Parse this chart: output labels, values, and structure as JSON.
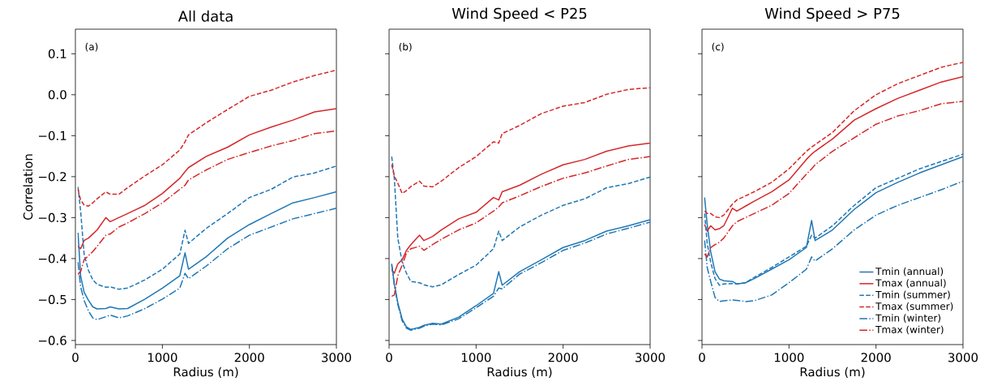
{
  "chart_data": [
    {
      "type": "line",
      "title": "All data",
      "xlabel": "Radius (m)",
      "ylabel": "Correlation",
      "annotations": [
        "(a)"
      ],
      "x": [
        30,
        60,
        100,
        150,
        200,
        250,
        350,
        400,
        500,
        600,
        800,
        1000,
        1200,
        1260,
        1300,
        1500,
        1750,
        2000,
        2250,
        2500,
        2750,
        3000
      ],
      "xlim": [
        0,
        3000
      ],
      "ylim": [
        -0.61,
        0.16
      ],
      "xticks": [
        0,
        1000,
        2000,
        3000
      ],
      "yticks": [
        {
          "value": -0.6,
          "label": "−0.6"
        },
        {
          "value": -0.5,
          "label": "−0.5"
        },
        {
          "value": -0.4,
          "label": "−0.4"
        },
        {
          "value": -0.3,
          "label": "−0.3"
        },
        {
          "value": -0.2,
          "label": "−0.2"
        },
        {
          "value": -0.1,
          "label": "−0.1"
        },
        {
          "value": 0,
          "label": "0.0"
        },
        0.1
      ],
      "series": [
        {
          "color": "#1f77b4",
          "line_style": "solid",
          "values": [
            -0.337,
            -0.442,
            -0.482,
            -0.502,
            -0.518,
            -0.523,
            -0.522,
            -0.518,
            -0.523,
            -0.522,
            -0.499,
            -0.472,
            -0.442,
            -0.386,
            -0.426,
            -0.396,
            -0.35,
            -0.317,
            -0.29,
            -0.264,
            -0.251,
            -0.237
          ]
        },
        {
          "color": "#d62728",
          "line_style": "solid",
          "values": [
            -0.37,
            -0.376,
            -0.356,
            -0.35,
            -0.34,
            -0.33,
            -0.3,
            -0.31,
            -0.3,
            -0.29,
            -0.27,
            -0.241,
            -0.204,
            -0.188,
            -0.178,
            -0.151,
            -0.128,
            -0.098,
            -0.079,
            -0.062,
            -0.042,
            -0.034
          ]
        },
        {
          "color": "#1f77b4",
          "line_style": "dashed",
          "values": [
            -0.225,
            -0.284,
            -0.389,
            -0.429,
            -0.452,
            -0.463,
            -0.47,
            -0.469,
            -0.475,
            -0.472,
            -0.452,
            -0.426,
            -0.389,
            -0.331,
            -0.363,
            -0.327,
            -0.29,
            -0.251,
            -0.231,
            -0.201,
            -0.191,
            -0.174
          ]
        },
        {
          "color": "#d62728",
          "line_style": "dashed",
          "values": [
            -0.231,
            -0.257,
            -0.269,
            -0.272,
            -0.264,
            -0.254,
            -0.237,
            -0.243,
            -0.243,
            -0.227,
            -0.198,
            -0.171,
            -0.135,
            -0.115,
            -0.098,
            -0.069,
            -0.036,
            -0.004,
            0.011,
            0.031,
            0.047,
            0.06
          ]
        },
        {
          "color": "#1f77b4",
          "line_style": "dashdot",
          "values": [
            -0.409,
            -0.469,
            -0.502,
            -0.528,
            -0.545,
            -0.549,
            -0.542,
            -0.538,
            -0.545,
            -0.54,
            -0.522,
            -0.499,
            -0.472,
            -0.436,
            -0.449,
            -0.419,
            -0.376,
            -0.343,
            -0.323,
            -0.303,
            -0.29,
            -0.277
          ]
        },
        {
          "color": "#d62728",
          "line_style": "dashdot",
          "values": [
            -0.439,
            -0.432,
            -0.403,
            -0.393,
            -0.383,
            -0.37,
            -0.343,
            -0.34,
            -0.323,
            -0.313,
            -0.29,
            -0.264,
            -0.231,
            -0.221,
            -0.208,
            -0.184,
            -0.158,
            -0.141,
            -0.125,
            -0.112,
            -0.095,
            -0.088
          ]
        }
      ]
    },
    {
      "type": "line",
      "title": "Wind Speed < P25",
      "xlabel": "Radius (m)",
      "annotations": [
        "(b)"
      ],
      "tick_labels": "x",
      "x": [
        30,
        60,
        100,
        150,
        200,
        250,
        350,
        400,
        500,
        600,
        800,
        1000,
        1200,
        1260,
        1300,
        1500,
        1750,
        2000,
        2250,
        2500,
        2750,
        3000
      ],
      "xlim": [
        0,
        3000
      ],
      "ylim": [
        -0.61,
        0.16
      ],
      "xticks": [
        0,
        1000,
        2000,
        3000
      ],
      "yticks": [
        -0.6,
        -0.5,
        -0.4,
        -0.3,
        -0.2,
        -0.1,
        0.0,
        0.1
      ],
      "series": [
        {
          "color": "#1f77b4",
          "line_style": "solid",
          "values": [
            -0.413,
            -0.462,
            -0.508,
            -0.548,
            -0.567,
            -0.573,
            -0.568,
            -0.563,
            -0.558,
            -0.56,
            -0.543,
            -0.515,
            -0.485,
            -0.432,
            -0.465,
            -0.432,
            -0.403,
            -0.373,
            -0.356,
            -0.333,
            -0.32,
            -0.305
          ]
        },
        {
          "color": "#d62728",
          "line_style": "solid",
          "values": [
            -0.426,
            -0.436,
            -0.413,
            -0.403,
            -0.38,
            -0.366,
            -0.343,
            -0.356,
            -0.346,
            -0.33,
            -0.303,
            -0.287,
            -0.251,
            -0.257,
            -0.237,
            -0.221,
            -0.194,
            -0.171,
            -0.158,
            -0.138,
            -0.125,
            -0.118
          ]
        },
        {
          "color": "#1f77b4",
          "line_style": "dashed",
          "values": [
            -0.151,
            -0.204,
            -0.35,
            -0.409,
            -0.436,
            -0.456,
            -0.459,
            -0.464,
            -0.469,
            -0.464,
            -0.439,
            -0.416,
            -0.376,
            -0.333,
            -0.356,
            -0.323,
            -0.294,
            -0.27,
            -0.254,
            -0.227,
            -0.217,
            -0.201
          ]
        },
        {
          "color": "#d62728",
          "line_style": "dashed",
          "values": [
            -0.171,
            -0.198,
            -0.216,
            -0.241,
            -0.234,
            -0.224,
            -0.211,
            -0.223,
            -0.225,
            -0.211,
            -0.178,
            -0.151,
            -0.115,
            -0.118,
            -0.095,
            -0.075,
            -0.046,
            -0.028,
            -0.019,
            0.001,
            0.013,
            0.017
          ]
        },
        {
          "color": "#1f77b4",
          "line_style": "dashdot",
          "values": [
            -0.415,
            -0.465,
            -0.512,
            -0.552,
            -0.57,
            -0.575,
            -0.57,
            -0.565,
            -0.56,
            -0.562,
            -0.547,
            -0.52,
            -0.492,
            -0.472,
            -0.474,
            -0.438,
            -0.41,
            -0.38,
            -0.362,
            -0.34,
            -0.326,
            -0.311
          ]
        },
        {
          "color": "#d62728",
          "line_style": "dashdot",
          "values": [
            -0.492,
            -0.489,
            -0.442,
            -0.416,
            -0.386,
            -0.376,
            -0.37,
            -0.38,
            -0.366,
            -0.353,
            -0.33,
            -0.313,
            -0.284,
            -0.274,
            -0.264,
            -0.247,
            -0.224,
            -0.204,
            -0.191,
            -0.174,
            -0.158,
            -0.151
          ]
        }
      ]
    },
    {
      "type": "line",
      "title": "Wind Speed > P75",
      "xlabel": "Radius (m)",
      "annotations": [
        "(c)"
      ],
      "tick_labels": "x",
      "legend": "bottom right",
      "x": [
        30,
        60,
        100,
        150,
        200,
        250,
        350,
        400,
        500,
        600,
        800,
        1000,
        1200,
        1260,
        1300,
        1500,
        1750,
        2000,
        2250,
        2500,
        2750,
        3000
      ],
      "xlim": [
        0,
        3000
      ],
      "ylim": [
        -0.61,
        0.16
      ],
      "xticks": [
        0,
        1000,
        2000,
        3000
      ],
      "yticks": [
        -0.6,
        -0.5,
        -0.4,
        -0.3,
        -0.2,
        -0.1,
        0.0,
        0.1
      ],
      "series": [
        {
          "name": "Tmin (annual)",
          "color": "#1f77b4",
          "line_style": "solid",
          "values": [
            -0.251,
            -0.317,
            -0.383,
            -0.432,
            -0.45,
            -0.454,
            -0.456,
            -0.462,
            -0.459,
            -0.449,
            -0.426,
            -0.403,
            -0.373,
            -0.307,
            -0.356,
            -0.33,
            -0.28,
            -0.239,
            -0.214,
            -0.191,
            -0.171,
            -0.151
          ]
        },
        {
          "name": "Tmax (annual)",
          "color": "#d62728",
          "line_style": "solid",
          "values": [
            -0.317,
            -0.333,
            -0.32,
            -0.33,
            -0.327,
            -0.32,
            -0.277,
            -0.284,
            -0.272,
            -0.26,
            -0.237,
            -0.208,
            -0.158,
            -0.145,
            -0.138,
            -0.108,
            -0.062,
            -0.034,
            -0.009,
            0.011,
            0.031,
            0.044
          ]
        },
        {
          "name": "Tmin (summer)",
          "color": "#1f77b4",
          "line_style": "dashed",
          "values": [
            -0.29,
            -0.363,
            -0.409,
            -0.449,
            -0.465,
            -0.462,
            -0.461,
            -0.462,
            -0.459,
            -0.446,
            -0.422,
            -0.396,
            -0.37,
            -0.343,
            -0.35,
            -0.32,
            -0.27,
            -0.227,
            -0.204,
            -0.181,
            -0.163,
            -0.145
          ]
        },
        {
          "name": "Tmax (summer)",
          "color": "#d62728",
          "line_style": "dashed",
          "values": [
            -0.284,
            -0.29,
            -0.29,
            -0.298,
            -0.3,
            -0.294,
            -0.267,
            -0.257,
            -0.247,
            -0.237,
            -0.214,
            -0.181,
            -0.138,
            -0.128,
            -0.122,
            -0.092,
            -0.039,
            0.0,
            0.027,
            0.047,
            0.067,
            0.079
          ]
        },
        {
          "name": "Tmin (winter)",
          "color": "#1f77b4",
          "line_style": "dashdot",
          "values": [
            -0.356,
            -0.422,
            -0.456,
            -0.495,
            -0.505,
            -0.503,
            -0.501,
            -0.502,
            -0.505,
            -0.503,
            -0.489,
            -0.459,
            -0.426,
            -0.396,
            -0.406,
            -0.376,
            -0.33,
            -0.294,
            -0.27,
            -0.251,
            -0.232,
            -0.211
          ]
        },
        {
          "name": "Tmax (winter)",
          "color": "#d62728",
          "line_style": "dashdot",
          "values": [
            -0.389,
            -0.396,
            -0.373,
            -0.366,
            -0.36,
            -0.35,
            -0.32,
            -0.31,
            -0.3,
            -0.29,
            -0.27,
            -0.241,
            -0.194,
            -0.181,
            -0.171,
            -0.138,
            -0.105,
            -0.072,
            -0.052,
            -0.039,
            -0.022,
            -0.016
          ]
        }
      ]
    }
  ]
}
